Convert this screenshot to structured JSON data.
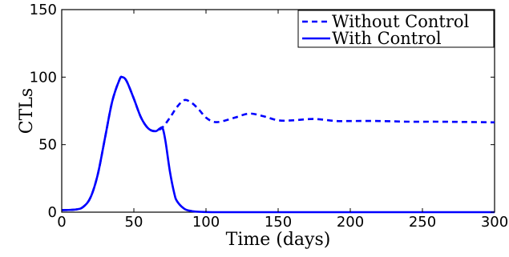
{
  "chart_data": {
    "type": "line",
    "xlabel": "Time (days)",
    "ylabel": "CTLs",
    "xlim": [
      0,
      300
    ],
    "ylim": [
      0,
      150
    ],
    "xticks": [
      "0",
      "50",
      "100",
      "150",
      "200",
      "250",
      "300"
    ],
    "yticks": [
      "0",
      "50",
      "100",
      "150"
    ],
    "grid": false,
    "legend_position": "top-right",
    "series": [
      {
        "name": "Without Control",
        "style": "dashed",
        "color": "#0000ff",
        "x": [
          0,
          10,
          15,
          20,
          25,
          30,
          35,
          40,
          42,
          45,
          50,
          55,
          60,
          65,
          70,
          75,
          80,
          85,
          90,
          95,
          100,
          105,
          110,
          120,
          130,
          140,
          150,
          160,
          175,
          190,
          200,
          220,
          240,
          260,
          280,
          300
        ],
        "y": [
          1.5,
          2,
          4,
          11,
          28,
          55,
          82,
          98,
          100,
          97,
          84,
          70,
          62,
          60,
          63,
          70,
          78,
          83,
          81,
          76,
          70,
          67,
          67,
          70,
          73,
          71,
          68,
          68,
          69,
          67.5,
          67.5,
          67.5,
          67,
          67,
          66.8,
          66.5
        ]
      },
      {
        "name": "With Control",
        "style": "solid",
        "color": "#0000ff",
        "x": [
          0,
          10,
          15,
          20,
          25,
          30,
          35,
          40,
          42,
          45,
          50,
          55,
          60,
          65,
          68,
          70,
          72,
          75,
          78,
          80,
          85,
          90,
          95,
          100,
          110,
          150,
          200,
          250,
          300
        ],
        "y": [
          1.5,
          2,
          4,
          11,
          28,
          55,
          82,
          98,
          100,
          97,
          84,
          70,
          62,
          60,
          62,
          62,
          52,
          30,
          14,
          8,
          2.5,
          0.8,
          0.3,
          0.1,
          0,
          0,
          0,
          0,
          0
        ]
      }
    ]
  }
}
